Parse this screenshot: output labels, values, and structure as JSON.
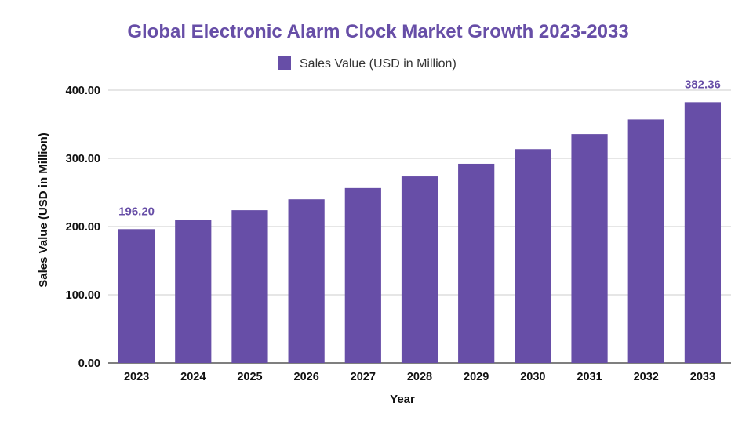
{
  "chart_data": {
    "type": "bar",
    "title": "Global Electronic Alarm Clock Market Growth 2023-2033",
    "xlabel": "Year",
    "ylabel": "Sales Value (USD in Million)",
    "categories": [
      "2023",
      "2024",
      "2025",
      "2026",
      "2027",
      "2028",
      "2029",
      "2030",
      "2031",
      "2032",
      "2033"
    ],
    "series": [
      {
        "name": "Sales Value (USD in Million)",
        "values": [
          196.2,
          210.0,
          224.0,
          240.0,
          256.5,
          273.5,
          292.0,
          313.5,
          335.5,
          357.0,
          382.36
        ]
      }
    ],
    "data_labels": [
      {
        "category": "2023",
        "text": "196.20"
      },
      {
        "category": "2033",
        "text": "382.36"
      }
    ],
    "yticks": [
      "0.00",
      "100.00",
      "200.00",
      "300.00",
      "400.00"
    ],
    "ytick_values": [
      0,
      100,
      200,
      300,
      400
    ],
    "ylim": [
      0,
      400
    ],
    "grid": "horizontal",
    "legend_position": "top-center",
    "colors": {
      "bar": "#674ea7",
      "title": "#674ea7",
      "data_label": "#674ea7",
      "grid": "#cccccc",
      "axis": "#333333"
    }
  }
}
